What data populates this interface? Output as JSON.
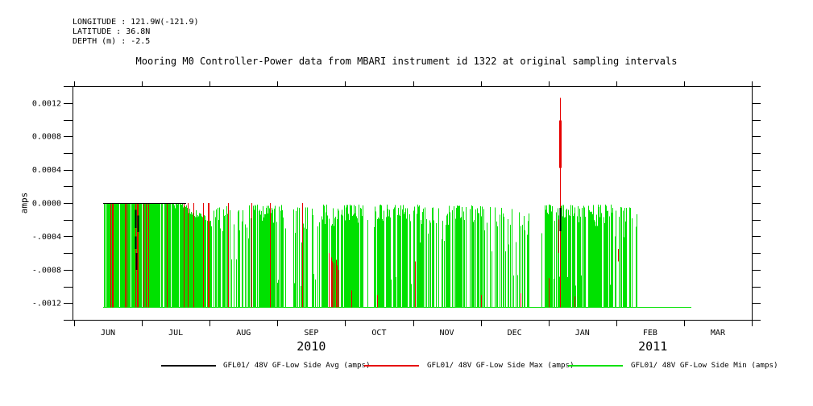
{
  "header": {
    "longitude": "LONGITUDE : 121.9W(-121.9)",
    "latitude": "LATITUDE : 36.8N",
    "depth": "DEPTH (m) : -2.5"
  },
  "title": "Mooring M0 Controller-Power data from MBARI instrument id 1322 at original sampling intervals",
  "legend": {
    "items": [
      {
        "label": "GFL01/ 48V GF-Low Side Avg (amps)",
        "color": "#000000"
      },
      {
        "label": "GFL01/ 48V GF-Low Side Max (amps)",
        "color": "#e60000"
      },
      {
        "label": "GFL01/ 48V GF-Low Side Min (amps)",
        "color": "#00e100"
      }
    ]
  },
  "chart_data": {
    "type": "line",
    "title": "Mooring M0 Controller-Power data from MBARI instrument id 1322 at original sampling intervals",
    "xlabel": "",
    "ylabel": "amps",
    "ylim": [
      -0.0014,
      0.0014
    ],
    "y_major_tick_step": 0.0004,
    "y_minor_tick_step": 0.0002,
    "y_tick_labels": [
      "0.0012",
      "0.0008",
      "0.0004",
      "0.0000",
      "-.0004",
      "-.0008",
      "-.0012"
    ],
    "x_range": {
      "start": "2010-06-01",
      "end": "2011-04-01"
    },
    "x_month_labels": [
      "JUN",
      "JUL",
      "AUG",
      "SEP",
      "OCT",
      "NOV",
      "DEC",
      "JAN",
      "FEB",
      "MAR"
    ],
    "x_year_labels": [
      {
        "label": "2010",
        "month_pos": 3.5
      },
      {
        "label": "2011",
        "month_pos": 8.54
      }
    ],
    "x_units_note": "month_pos units: 0 = 2010-06-01, 1 = 2010-07-01, ... 10 = 2011-04-01",
    "grid": false,
    "legend_position": "bottom",
    "seed": 7,
    "summary": {
      "data_start": "2010-06-13",
      "dense_on_block_until": "2010-07-15",
      "peak_event": {
        "series": "Max",
        "date": "2011-01-04",
        "value_amps": 0.00126
      },
      "avg_dip_at_peak_amps": -0.0003,
      "spikes_end": "2011-02-09",
      "flat_baseline_until": "2011-03-04",
      "typical_min_amps": -0.00125,
      "typical_max_amps": 0.0
    },
    "series": [
      {
        "name": "GFL01/ 48V GF-Low Side Avg (amps)",
        "color": "#000000",
        "zero_line_span": [
          0.43,
          1.65
        ],
        "zero_value": 0.0,
        "dashes": [
          {
            "x": 0.9,
            "top": -8e-05,
            "bottom": -0.0003
          },
          {
            "x": 0.9,
            "top": -0.0004,
            "bottom": -0.00055
          },
          {
            "x": 0.91,
            "top": -0.0006,
            "bottom": -0.0008
          },
          {
            "x": 0.94,
            "top": -0.00015,
            "bottom": -0.00035
          }
        ],
        "jan_spike": {
          "x": 7.17,
          "top": -6e-05,
          "bottom": -0.00034
        }
      },
      {
        "name": "GFL01/ 48V GF-Low Side Max (amps)",
        "color": "#e60000",
        "june_cluster": {
          "x0": 0.5,
          "x1": 1.44,
          "density": 0.2,
          "top": 0.0,
          "bottom": -0.00125
        },
        "full_lines": [
          1.62,
          1.68,
          1.76,
          1.9,
          1.97,
          1.99,
          2.27,
          2.62,
          2.89,
          3.37
        ],
        "full_line_top": 0.0,
        "full_line_bottom": -0.00125,
        "partial_lines": [
          {
            "x": 3.76,
            "top": -0.0006,
            "bottom": -0.00125
          },
          {
            "x": 3.79,
            "top": -0.00065,
            "bottom": -0.00125
          },
          {
            "x": 3.81,
            "top": -0.0007,
            "bottom": -0.00125
          },
          {
            "x": 3.83,
            "top": -0.00072,
            "bottom": -0.00125
          },
          {
            "x": 3.86,
            "top": -0.00068,
            "bottom": -0.00125
          },
          {
            "x": 3.88,
            "top": -0.00075,
            "bottom": -0.00125
          },
          {
            "x": 3.9,
            "top": -0.0008,
            "bottom": -0.00125
          },
          {
            "x": 4.09,
            "top": -0.00105,
            "bottom": -0.00125
          },
          {
            "x": 4.47,
            "top": -0.0011,
            "bottom": -0.00125
          },
          {
            "x": 5.03,
            "top": -0.0007,
            "bottom": -0.00125
          },
          {
            "x": 6.0,
            "top": -0.0011,
            "bottom": -0.00125
          },
          {
            "x": 6.59,
            "top": -0.00108,
            "bottom": -0.00125
          },
          {
            "x": 7.0,
            "top": -0.0009,
            "bottom": -0.00125
          },
          {
            "x": 7.38,
            "top": -0.00112,
            "bottom": -0.00125
          },
          {
            "x": 8.03,
            "top": -0.00055,
            "bottom": -0.0007
          }
        ],
        "jan_spike": {
          "x": 7.17,
          "peak": 0.00126,
          "thick_top": 0.00099,
          "thick_bottom": 0.00042,
          "bottom": -0.00125,
          "side_dip": {
            "x": 7.145,
            "top": -0.0002,
            "bottom": -0.0006
          }
        }
      },
      {
        "name": "GFL01/ 48V GF-Low Side Min (amps)",
        "color": "#00e100",
        "baseline": -0.00125,
        "baseline_span": [
          0.43,
          9.11
        ],
        "segments": [
          {
            "x0": 0.43,
            "x1": 1.45,
            "kind": "block",
            "density": 0.93,
            "top": [
              0,
              0
            ]
          },
          {
            "x0": 1.45,
            "x1": 2.02,
            "kind": "ramp",
            "density": 0.9,
            "top_start": 0,
            "top_end": -0.00022,
            "jitter": 5e-05
          },
          {
            "x0": 2.02,
            "x1": 2.29,
            "kind": "spikes",
            "density": 0.8,
            "top": [
              -0.00035,
              -3e-05
            ]
          },
          {
            "x0": 2.29,
            "x1": 2.57,
            "kind": "spikes",
            "density": 0.45,
            "top": [
              -0.0008,
              -8e-05
            ]
          },
          {
            "x0": 2.57,
            "x1": 3.09,
            "kind": "spikes",
            "density": 0.85,
            "top": [
              -0.00025,
              -2e-05
            ]
          },
          {
            "x0": 3.09,
            "x1": 3.6,
            "kind": "spikes",
            "density": 0.55,
            "top": [
              -0.0005,
              -5e-05
            ]
          },
          {
            "x0": 3.6,
            "x1": 4.28,
            "kind": "spikes",
            "density": 0.78,
            "top": [
              -0.0003,
              -2e-05
            ]
          },
          {
            "x0": 4.28,
            "x1": 4.43,
            "kind": "spikes",
            "density": 0.3,
            "top": [
              -0.0006,
              -0.0002
            ]
          },
          {
            "x0": 4.43,
            "x1": 5.09,
            "kind": "spikes",
            "density": 0.8,
            "top": [
              -0.00022,
              -2e-05
            ]
          },
          {
            "x0": 5.09,
            "x1": 5.5,
            "kind": "spikes",
            "density": 0.6,
            "top": [
              -0.0005,
              -5e-05
            ]
          },
          {
            "x0": 5.5,
            "x1": 6.04,
            "kind": "spikes",
            "density": 0.72,
            "top": [
              -0.0003,
              -3e-05
            ]
          },
          {
            "x0": 6.04,
            "x1": 6.52,
            "kind": "spikes",
            "density": 0.55,
            "top": [
              -0.0006,
              -5e-05
            ]
          },
          {
            "x0": 6.52,
            "x1": 6.73,
            "kind": "spikes",
            "density": 0.38,
            "top": [
              -0.0004,
              -0.0001
            ]
          },
          {
            "x0": 6.73,
            "x1": 6.94,
            "kind": "spikes",
            "density": 0.15,
            "top": [
              -0.0005,
              -0.0002
            ]
          },
          {
            "x0": 6.94,
            "x1": 7.94,
            "kind": "spikes",
            "density": 0.78,
            "top": [
              -0.00028,
              -2e-05
            ]
          },
          {
            "x0": 7.94,
            "x1": 8.3,
            "kind": "spikes",
            "density": 0.5,
            "top": [
              -0.00045,
              -5e-05
            ]
          }
        ]
      }
    ]
  }
}
